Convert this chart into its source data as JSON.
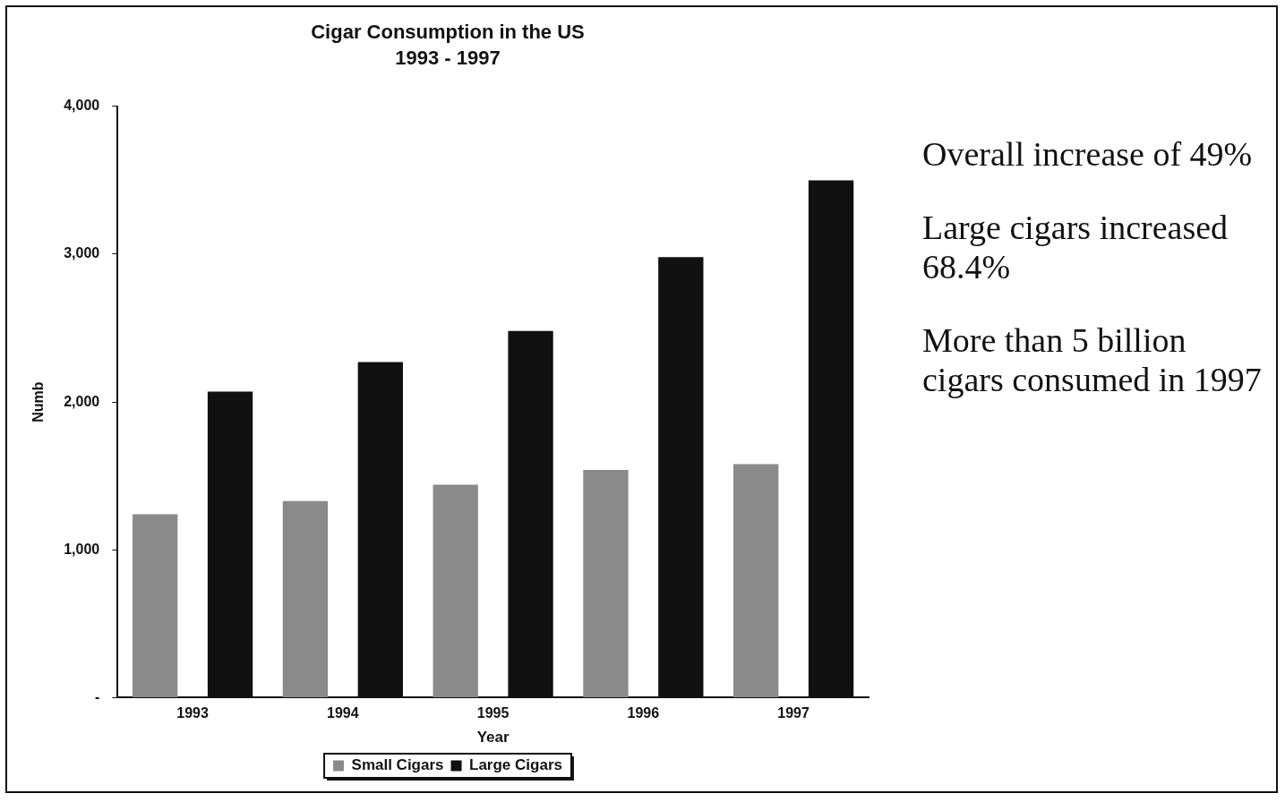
{
  "chart_data": {
    "type": "bar",
    "title": "Cigar Consumption in the US",
    "subtitle": "1993 - 1997",
    "xlabel": "Year",
    "ylabel": "Numb",
    "categories": [
      "1993",
      "1994",
      "1995",
      "1996",
      "1997"
    ],
    "series": [
      {
        "name": "Small Cigars",
        "color": "#8a8a8a",
        "values": [
          1240,
          1330,
          1440,
          1540,
          1580
        ]
      },
      {
        "name": "Large Cigars",
        "color": "#111111",
        "values": [
          2070,
          2270,
          2480,
          2980,
          3500
        ]
      }
    ],
    "ylim": [
      0,
      4000
    ],
    "yticks": [
      {
        "value": 0,
        "label": "-"
      },
      {
        "value": 1000,
        "label": "1,000"
      },
      {
        "value": 2000,
        "label": "2,000"
      },
      {
        "value": 3000,
        "label": "3,000"
      },
      {
        "value": 4000,
        "label": "4,000"
      }
    ],
    "grid": false,
    "legend": "bottom",
    "annotations": [
      "Overall increase of 49%",
      "Large cigars increased 68.4%",
      "More than 5 billion cigars consumed in 1997"
    ]
  }
}
